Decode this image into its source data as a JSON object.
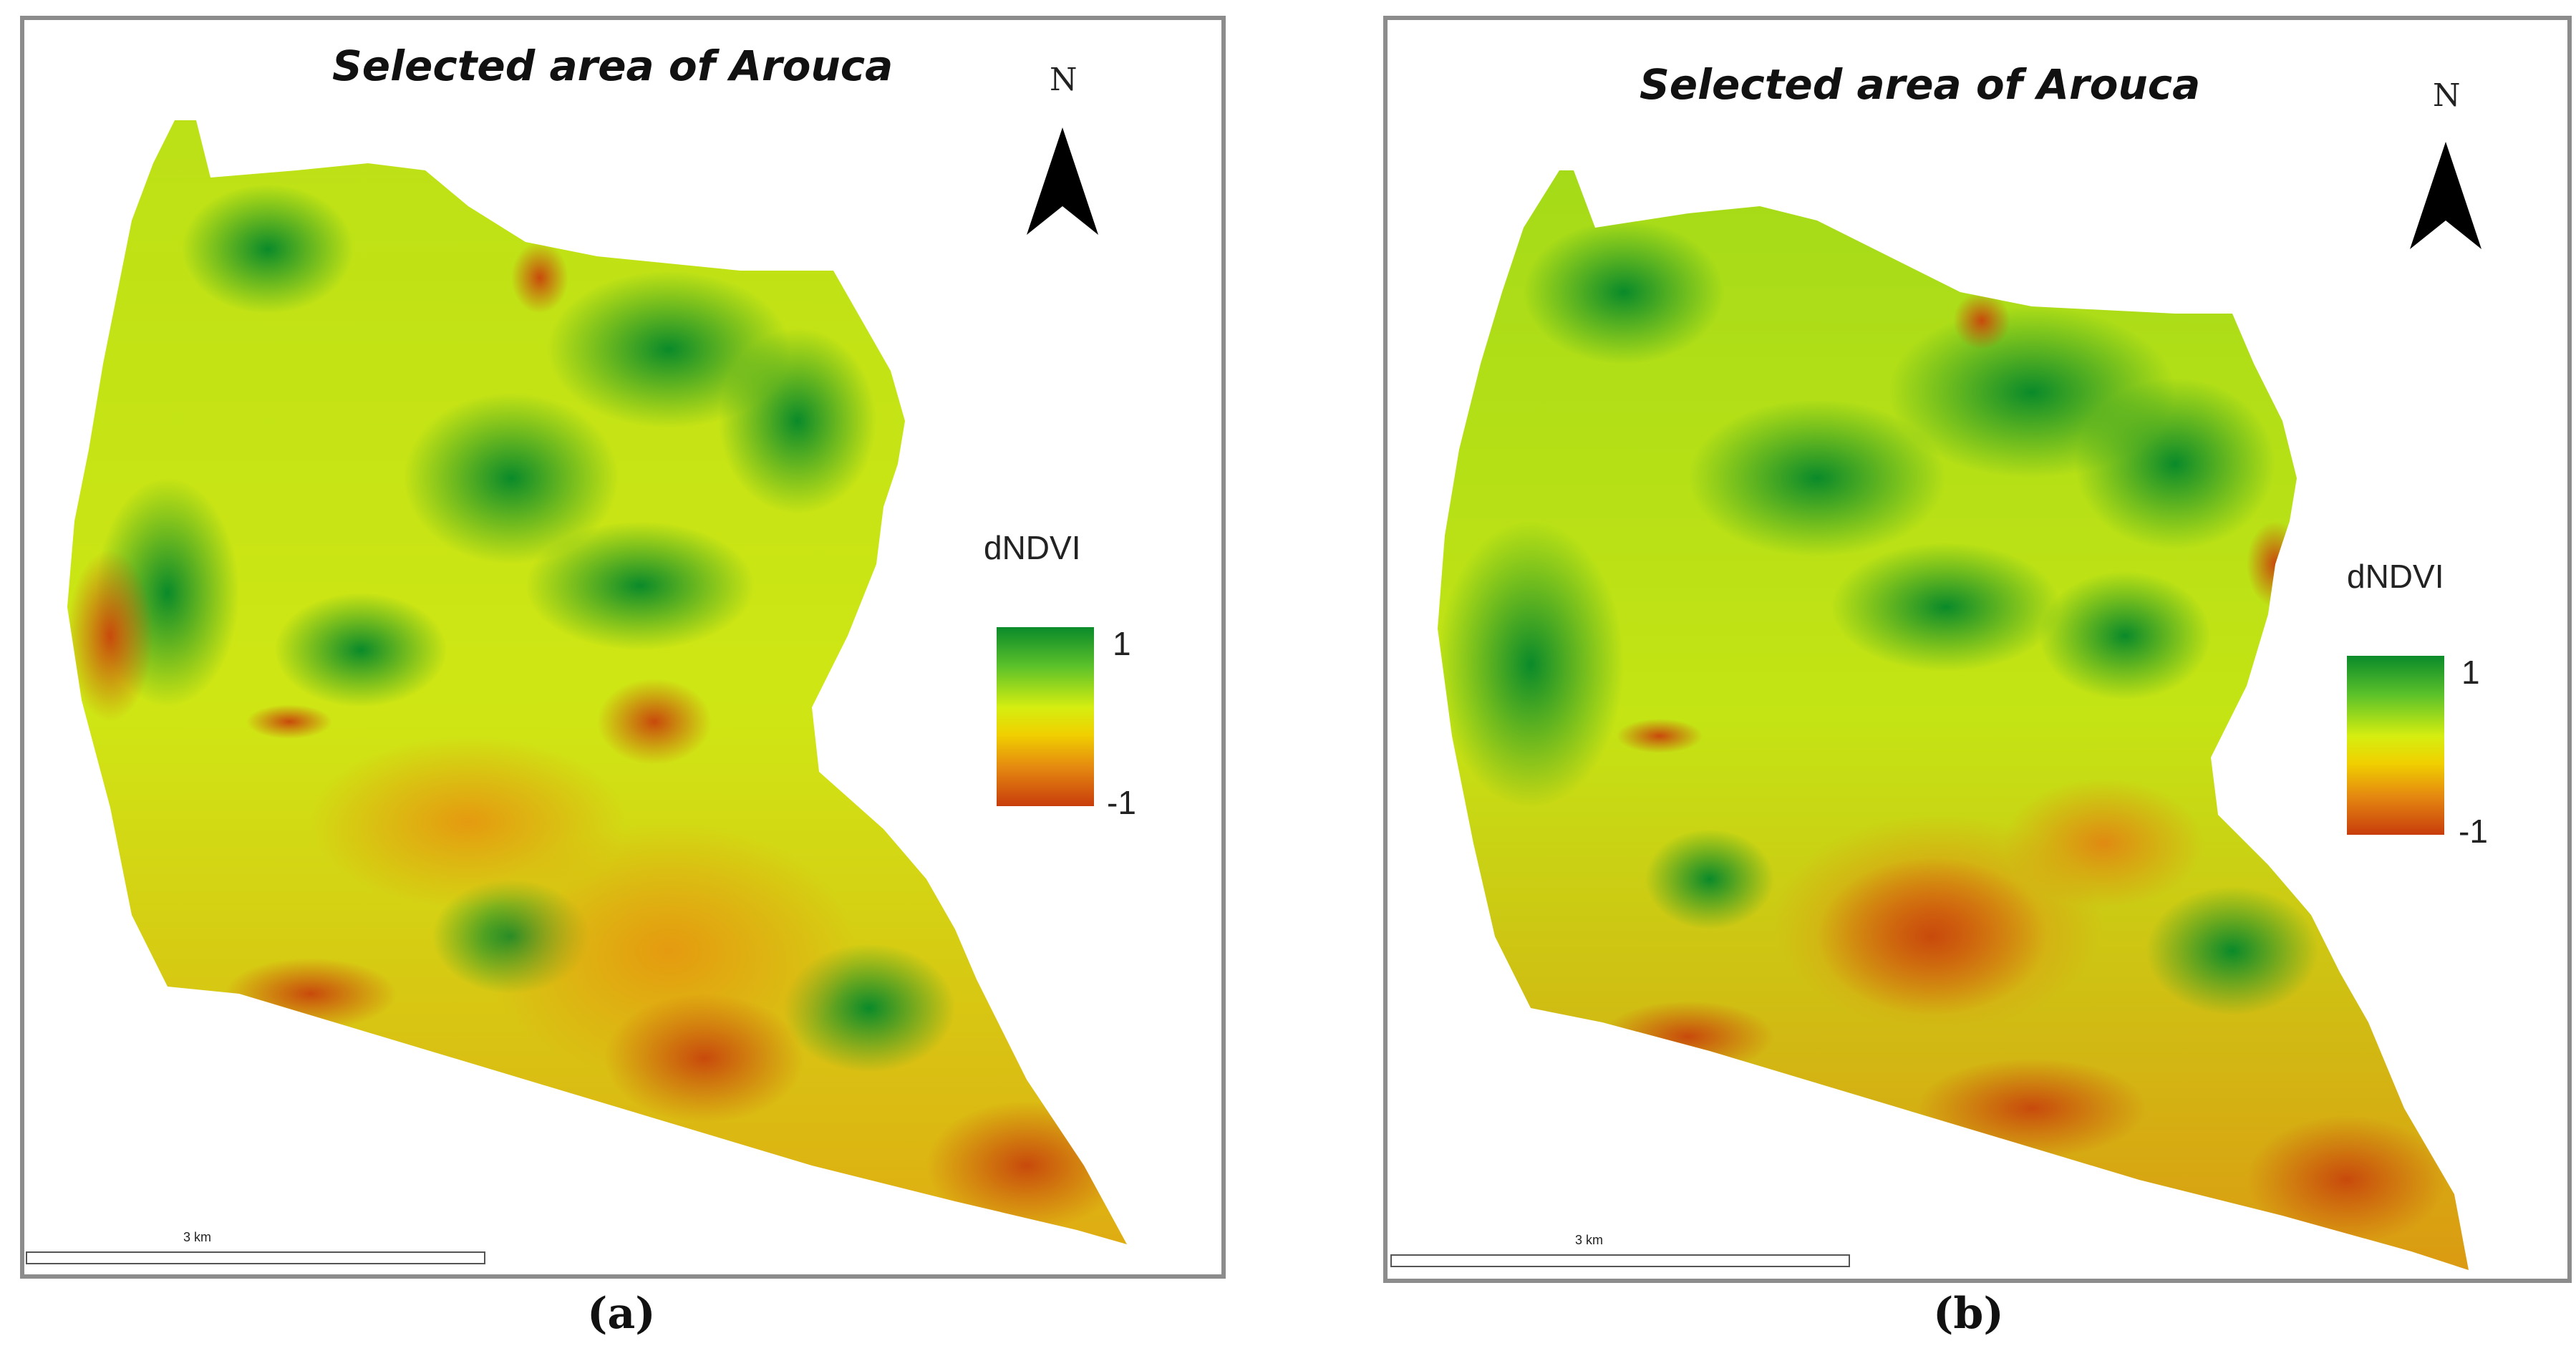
{
  "panels": [
    {
      "title": "Selected area of Arouca",
      "north_label": "N",
      "legend": {
        "title": "dNDVI",
        "max_label": "1",
        "min_label": "-1"
      },
      "scale_label": "3 km",
      "caption": "(a)"
    },
    {
      "title": "Selected area of Arouca",
      "north_label": "N",
      "legend": {
        "title": "dNDVI",
        "max_label": "1",
        "min_label": "-1"
      },
      "scale_label": "3 km",
      "caption": "(b)"
    }
  ],
  "legend_colors": [
    "#0a8a2a",
    "#5cc22a",
    "#d6ee10",
    "#f0d000",
    "#e58a10",
    "#c83c0c"
  ],
  "icons": {
    "north_arrow": "north-arrow-icon"
  }
}
